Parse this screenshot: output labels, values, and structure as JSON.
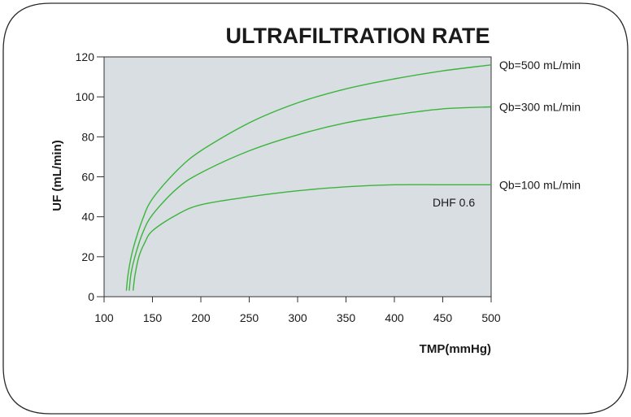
{
  "chart_data": {
    "type": "line",
    "title": "ULTRAFILTRATION RATE",
    "xlabel": "TMP(mmHg)",
    "ylabel": "UF (mL/min)",
    "xlim": [
      100,
      500
    ],
    "ylim": [
      0,
      120
    ],
    "xticks": [
      100,
      150,
      200,
      250,
      300,
      350,
      400,
      450,
      500
    ],
    "yticks": [
      0,
      20,
      40,
      60,
      80,
      100,
      120
    ],
    "grid": false,
    "legend": "labels at right end of lines",
    "annotation": "DHF 0.6",
    "colors": {
      "line": "#3cb43c",
      "plot_background": "#d8dee2",
      "frame": "#333333"
    },
    "series": [
      {
        "name": "Qb=500 mL/min",
        "x": [
          123,
          125,
          130,
          140,
          150,
          175,
          200,
          250,
          300,
          350,
          400,
          450,
          500
        ],
        "y": [
          3,
          12,
          24,
          39,
          49,
          63,
          73,
          87,
          97,
          104,
          109,
          113,
          116
        ]
      },
      {
        "name": "Qb=300 mL/min",
        "x": [
          126,
          128,
          133,
          140,
          150,
          175,
          200,
          250,
          300,
          350,
          400,
          450,
          500
        ],
        "y": [
          3,
          12,
          22,
          32,
          41,
          54,
          62,
          73,
          81,
          87,
          91,
          94,
          95
        ]
      },
      {
        "name": "Qb=100 mL/min",
        "x": [
          130,
          132,
          136,
          142,
          150,
          175,
          200,
          250,
          300,
          350,
          400,
          450,
          500
        ],
        "y": [
          3,
          11,
          20,
          27,
          33,
          41,
          46,
          50,
          53,
          55,
          56,
          56,
          56
        ]
      }
    ]
  }
}
